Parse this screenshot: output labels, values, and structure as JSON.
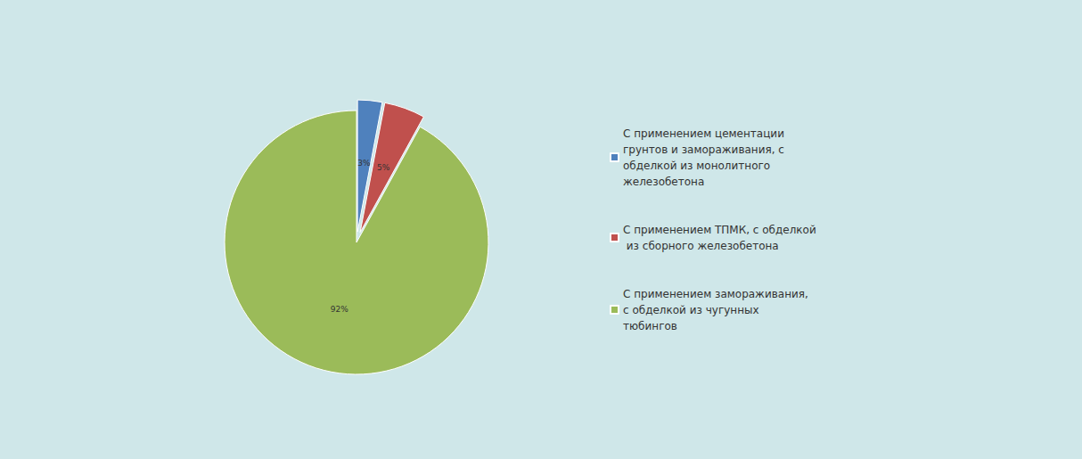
{
  "chart_data": {
    "type": "pie",
    "categories": [
      "С применением цементации грунтов и замораживания, с обделкой из монолитного железобетона",
      "С применением ТПМК, с обделкой из сборного железобетона",
      "С применением замораживания, с обделкой из чугунных тюбингов"
    ],
    "values": [
      3,
      5,
      92
    ],
    "value_labels": [
      "3%",
      "5%",
      "92%"
    ],
    "colors": [
      "#4f81bd",
      "#c0504d",
      "#9bbb59"
    ],
    "data_labels": true,
    "legend": "right"
  }
}
